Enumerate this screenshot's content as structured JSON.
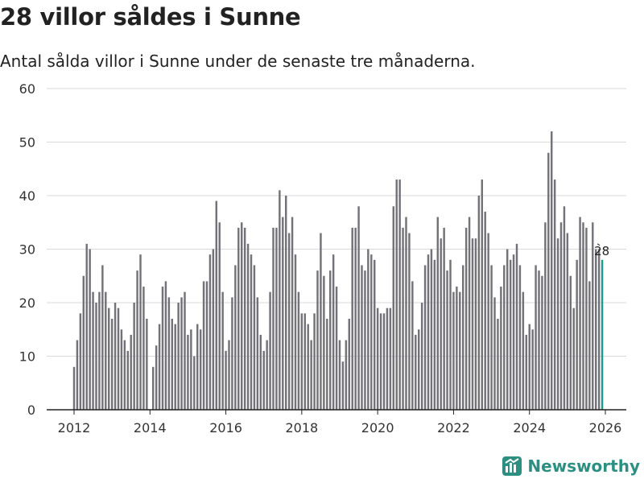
{
  "title": "28 villor såldes i Sunne",
  "subtitle": "Antal sålda villor i Sunne under de senaste tre månaderna.",
  "brand": {
    "name": "Newsworthy",
    "icon": "newsworthy-logo-icon"
  },
  "colors": {
    "bar": "#737278",
    "highlight": "#1a9c8b",
    "grid": "#d9d9d9",
    "axis": "#444444",
    "brand": "#2d8f82"
  },
  "chart_data": {
    "type": "bar",
    "title": "28 villor såldes i Sunne",
    "xlabel": "",
    "ylabel": "",
    "ylim": [
      0,
      60
    ],
    "yticks": [
      0,
      10,
      20,
      30,
      40,
      50,
      60
    ],
    "xticks": [
      2012,
      2014,
      2016,
      2018,
      2020,
      2022,
      2024,
      2026
    ],
    "x_unit": "year",
    "start": "2012-01",
    "values": [
      8,
      13,
      18,
      25,
      31,
      30,
      22,
      20,
      22,
      27,
      22,
      19,
      17,
      20,
      19,
      15,
      13,
      11,
      14,
      20,
      26,
      29,
      23,
      17,
      null,
      8,
      12,
      16,
      23,
      24,
      21,
      17,
      16,
      20,
      21,
      22,
      14,
      15,
      10,
      16,
      15,
      24,
      24,
      29,
      30,
      39,
      35,
      22,
      11,
      13,
      21,
      27,
      34,
      35,
      34,
      31,
      29,
      27,
      21,
      14,
      11,
      13,
      22,
      34,
      34,
      41,
      36,
      40,
      33,
      36,
      29,
      22,
      18,
      18,
      16,
      13,
      18,
      26,
      33,
      25,
      17,
      26,
      29,
      23,
      13,
      9,
      13,
      17,
      34,
      34,
      38,
      27,
      26,
      30,
      29,
      28,
      19,
      18,
      18,
      19,
      19,
      38,
      43,
      43,
      34,
      36,
      33,
      24,
      14,
      15,
      20,
      27,
      29,
      30,
      28,
      36,
      32,
      34,
      26,
      28,
      22,
      23,
      22,
      27,
      34,
      36,
      32,
      32,
      40,
      43,
      37,
      33,
      27,
      21,
      17,
      23,
      27,
      30,
      28,
      29,
      31,
      27,
      22,
      14,
      16,
      15,
      27,
      26,
      25,
      35,
      48,
      52,
      43,
      32,
      35,
      38,
      33,
      25,
      19,
      28,
      36,
      35,
      34,
      24,
      35,
      30,
      30,
      28
    ],
    "annotation": {
      "label": "28",
      "value": 28,
      "date": "2026-01"
    }
  }
}
